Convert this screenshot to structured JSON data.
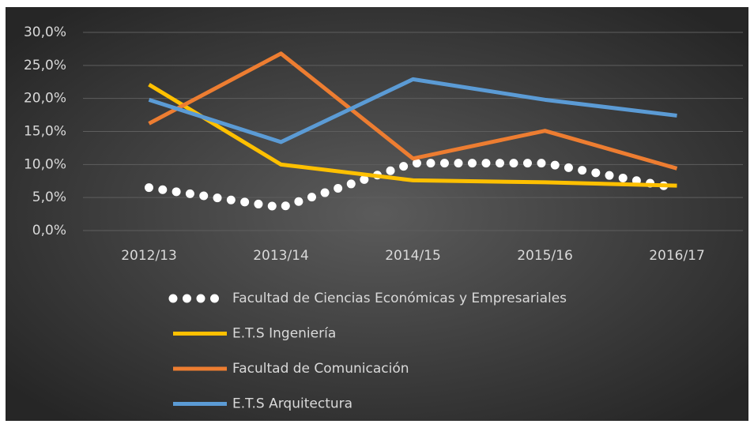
{
  "chart_data": {
    "type": "line",
    "categories": [
      "2012/13",
      "2013/14",
      "2014/15",
      "2015/16",
      "2016/17"
    ],
    "series": [
      {
        "name": "Facultad de Ciencias Económicas y Empresariales",
        "color": "#ffffff",
        "style": "dotted",
        "values": [
          6.5,
          3.5,
          10.2,
          10.2,
          6.4
        ]
      },
      {
        "name": "E.T.S Ingeniería",
        "color": "#ffc000",
        "style": "solid",
        "values": [
          22.1,
          10.0,
          7.6,
          7.3,
          6.8
        ]
      },
      {
        "name": "Facultad de Comunicación",
        "color": "#ed7d31",
        "style": "solid",
        "values": [
          16.2,
          26.8,
          10.9,
          15.1,
          9.4
        ]
      },
      {
        "name": "E.T.S Arquitectura",
        "color": "#5b9bd5",
        "style": "solid",
        "values": [
          19.8,
          13.4,
          22.9,
          19.8,
          17.4
        ]
      }
    ],
    "ylim": [
      0,
      30
    ],
    "yticks": [
      {
        "value": 0,
        "label": "0,0%"
      },
      {
        "value": 5,
        "label": "5,0%"
      },
      {
        "value": 10,
        "label": "10,0%"
      },
      {
        "value": 15,
        "label": "15,0%"
      },
      {
        "value": 20,
        "label": "20,0%"
      },
      {
        "value": 25,
        "label": "25,0%"
      },
      {
        "value": 30,
        "label": "30,0%"
      }
    ],
    "grid": true,
    "legend": "bottom"
  }
}
